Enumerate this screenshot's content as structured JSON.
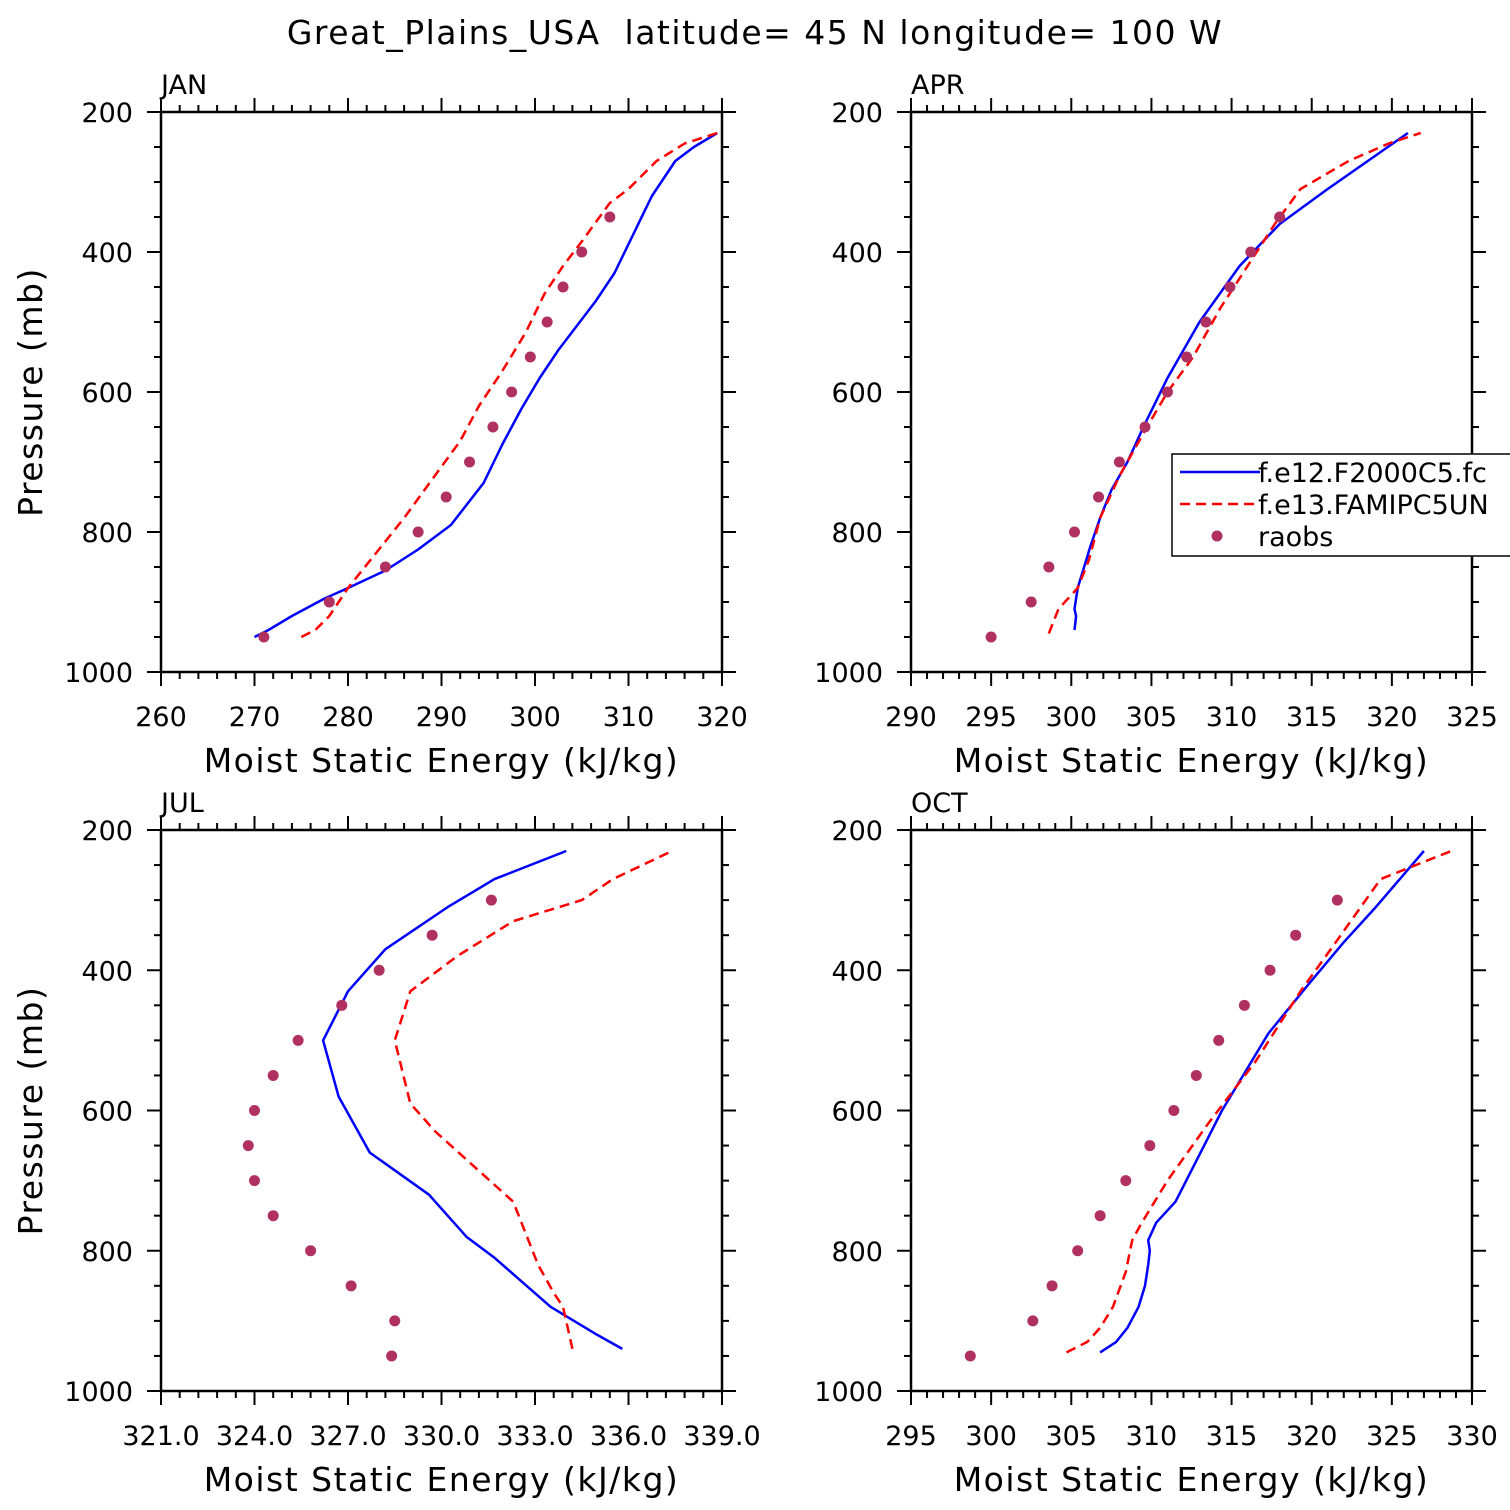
{
  "figure_title": "Great_Plains_USA  latitude= 45 N longitude= 100 W",
  "colors": {
    "model_a": "#0000ff",
    "model_b": "#ff0000",
    "raobs": "#b03060",
    "axes": "#000000"
  },
  "chart_data": [
    {
      "type": "line",
      "panel_label": "JAN",
      "xlabel": "Moist Static Energy (kJ/kg)",
      "ylabel": "Pressure (mb)",
      "xlim": [
        260,
        320
      ],
      "ylim": [
        1000,
        200
      ],
      "xticks": [
        260,
        270,
        280,
        290,
        300,
        310,
        320
      ],
      "xtick_labels": [
        "260",
        "270",
        "280",
        "290",
        "300",
        "310",
        "320"
      ],
      "yticks": [
        200,
        400,
        600,
        800,
        1000
      ],
      "ytick_labels": [
        "200",
        "400",
        "600",
        "800",
        "1000"
      ],
      "series": [
        {
          "name": "f.e12.F2000C5.fc",
          "style": "solid",
          "color": "#0000ff",
          "x": [
            270,
            271.5,
            274,
            277.5,
            280,
            284,
            287.5,
            291,
            294.5,
            296.5,
            298.5,
            300.5,
            302.5,
            304.5,
            306.5,
            308.5,
            310.5,
            312.5,
            315,
            317,
            319.5
          ],
          "y": [
            950,
            940,
            920,
            895,
            880,
            855,
            825,
            790,
            730,
            675,
            625,
            580,
            540,
            505,
            470,
            430,
            375,
            320,
            270,
            250,
            230
          ]
        },
        {
          "name": "f.e13.FAMIPC5UN",
          "style": "dashed",
          "color": "#ff0000",
          "x": [
            275,
            276.5,
            278,
            280,
            283,
            286,
            289,
            292,
            294,
            296.5,
            299,
            301,
            303,
            305,
            308,
            310,
            313,
            316,
            319.5
          ],
          "y": [
            950,
            940,
            920,
            880,
            830,
            780,
            725,
            670,
            620,
            570,
            515,
            460,
            420,
            385,
            330,
            310,
            270,
            245,
            230
          ]
        },
        {
          "name": "raobs",
          "style": "dots",
          "color": "#b03060",
          "x": [
            271,
            278,
            284,
            287.5,
            290.5,
            293,
            295.5,
            297.5,
            299.5,
            301.3,
            303,
            305,
            308
          ],
          "y": [
            950,
            900,
            850,
            800,
            750,
            700,
            650,
            600,
            550,
            500,
            450,
            400,
            350
          ]
        }
      ]
    },
    {
      "type": "line",
      "panel_label": "APR",
      "xlabel": "Moist Static Energy (kJ/kg)",
      "ylabel": "",
      "xlim": [
        290,
        325
      ],
      "ylim": [
        1000,
        200
      ],
      "xticks": [
        290,
        295,
        300,
        305,
        310,
        315,
        320,
        325
      ],
      "xtick_labels": [
        "290",
        "295",
        "300",
        "305",
        "310",
        "315",
        "320",
        "325"
      ],
      "yticks": [
        200,
        400,
        600,
        800,
        1000
      ],
      "ytick_labels": [
        "200",
        "400",
        "600",
        "800",
        "1000"
      ],
      "legend": {
        "position": "right",
        "entries": [
          "f.e12.F2000C5.fc",
          "f.e13.FAMIPC5UN",
          "raobs"
        ]
      },
      "series": [
        {
          "name": "f.e12.F2000C5.fc",
          "style": "solid",
          "color": "#0000ff",
          "x": [
            300.2,
            300.3,
            300.2,
            300.4,
            300.8,
            301.2,
            301.8,
            302.5,
            303.5,
            304.5,
            306,
            308,
            310.5,
            313,
            316,
            318.5,
            321
          ],
          "y": [
            940,
            920,
            910,
            880,
            850,
            820,
            780,
            740,
            700,
            650,
            580,
            500,
            420,
            360,
            310,
            270,
            230
          ]
        },
        {
          "name": "f.e13.FAMIPC5UN",
          "style": "dashed",
          "color": "#ff0000",
          "x": [
            298.6,
            299.2,
            300.4,
            301.1,
            301.8,
            303,
            304.6,
            306,
            307.6,
            309.3,
            311,
            312.7,
            314.3,
            317.3,
            319.8,
            321.8
          ],
          "y": [
            945,
            910,
            880,
            840,
            780,
            720,
            655,
            600,
            550,
            480,
            420,
            360,
            310,
            270,
            245,
            230
          ]
        },
        {
          "name": "raobs",
          "style": "dots",
          "color": "#b03060",
          "x": [
            295,
            297.5,
            298.6,
            300.2,
            301.7,
            303,
            304.6,
            306,
            307.2,
            308.4,
            309.9,
            311.2,
            313
          ],
          "y": [
            950,
            900,
            850,
            800,
            750,
            700,
            650,
            600,
            550,
            500,
            450,
            400,
            350
          ]
        }
      ]
    },
    {
      "type": "line",
      "panel_label": "JUL",
      "xlabel": "Moist Static Energy (kJ/kg)",
      "ylabel": "Pressure (mb)",
      "xlim": [
        321,
        339
      ],
      "ylim": [
        1000,
        200
      ],
      "xticks": [
        321,
        324,
        327,
        330,
        333,
        336,
        339
      ],
      "xtick_labels": [
        "321.0",
        "324.0",
        "327.0",
        "330.0",
        "333.0",
        "336.0",
        "339.0"
      ],
      "yticks": [
        200,
        400,
        600,
        800,
        1000
      ],
      "ytick_labels": [
        "200",
        "400",
        "600",
        "800",
        "1000"
      ],
      "series": [
        {
          "name": "f.e12.F2000C5.fc",
          "style": "solid",
          "color": "#0000ff",
          "x": [
            335.8,
            335,
            333.5,
            331.7,
            330.8,
            329.6,
            327.7,
            326.7,
            326.2,
            327,
            328.2,
            330.2,
            331.7,
            334
          ],
          "y": [
            940,
            920,
            880,
            810,
            780,
            720,
            660,
            580,
            500,
            430,
            370,
            310,
            270,
            230
          ]
        },
        {
          "name": "f.e13.FAMIPC5UN",
          "style": "dashed",
          "color": "#ff0000",
          "x": [
            334.2,
            334.1,
            333.9,
            333.6,
            333.1,
            332.3,
            331.3,
            329.8,
            329,
            328.5,
            329,
            330.5,
            332.3,
            334.5,
            335.5,
            337.4
          ],
          "y": [
            940,
            920,
            880,
            860,
            820,
            730,
            690,
            630,
            590,
            500,
            430,
            380,
            330,
            300,
            270,
            230
          ]
        },
        {
          "name": "raobs",
          "style": "dots",
          "color": "#b03060",
          "x": [
            328.4,
            328.5,
            327.1,
            325.8,
            324.6,
            324,
            323.8,
            324,
            324.6,
            325.4,
            326.8,
            328,
            329.7,
            331.6
          ],
          "y": [
            950,
            900,
            850,
            800,
            750,
            700,
            650,
            600,
            550,
            500,
            450,
            400,
            350,
            300
          ]
        }
      ]
    },
    {
      "type": "line",
      "panel_label": "OCT",
      "xlabel": "Moist Static Energy (kJ/kg)",
      "ylabel": "",
      "xlim": [
        295,
        330
      ],
      "ylim": [
        1000,
        200
      ],
      "xticks": [
        295,
        300,
        305,
        310,
        315,
        320,
        325,
        330
      ],
      "xtick_labels": [
        "295",
        "300",
        "305",
        "310",
        "315",
        "320",
        "325",
        "330"
      ],
      "yticks": [
        200,
        400,
        600,
        800,
        1000
      ],
      "ytick_labels": [
        "200",
        "400",
        "600",
        "800",
        "1000"
      ],
      "series": [
        {
          "name": "f.e12.F2000C5.fc",
          "style": "solid",
          "color": "#0000ff",
          "x": [
            306.8,
            307.8,
            308.5,
            309.2,
            309.6,
            309.8,
            309.9,
            309.8,
            310.3,
            311.5,
            314.4,
            317.3,
            319.8,
            322,
            324,
            327
          ],
          "y": [
            945,
            930,
            910,
            880,
            850,
            820,
            800,
            785,
            760,
            730,
            600,
            490,
            420,
            360,
            310,
            230
          ]
        },
        {
          "name": "f.e13.FAMIPC5UN",
          "style": "dashed",
          "color": "#ff0000",
          "x": [
            304.7,
            306,
            306.8,
            307.6,
            308.4,
            308.8,
            309.4,
            311,
            313.5,
            316.5,
            319.3,
            321.5,
            324.3,
            328.7
          ],
          "y": [
            945,
            930,
            910,
            880,
            830,
            785,
            760,
            700,
            620,
            530,
            430,
            360,
            270,
            230
          ]
        },
        {
          "name": "raobs",
          "style": "dots",
          "color": "#b03060",
          "x": [
            298.7,
            302.6,
            303.8,
            305.4,
            306.8,
            308.4,
            309.9,
            311.4,
            312.8,
            314.2,
            315.8,
            317.4,
            319,
            321.6
          ],
          "y": [
            950,
            900,
            850,
            800,
            750,
            700,
            650,
            600,
            550,
            500,
            450,
            400,
            350,
            300
          ]
        }
      ]
    }
  ]
}
